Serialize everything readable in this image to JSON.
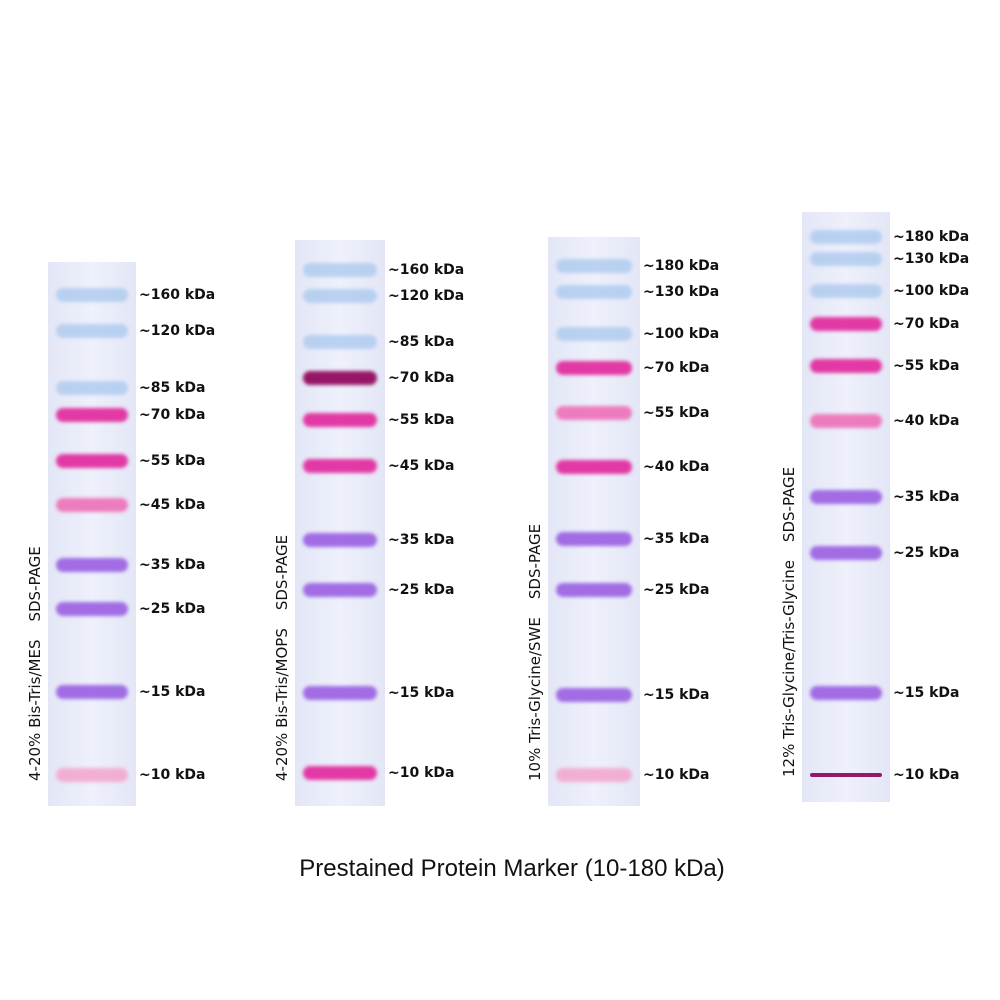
{
  "title": "Prestained Protein Marker (10-180 kDa)",
  "lanes": [
    {
      "gel": "4-20% Bis-Tris/MES",
      "method": "SDS-PAGE",
      "bands": [
        "~160 kDa",
        "~120 kDa",
        "~85 kDa",
        "~70 kDa",
        "~55 kDa",
        "~45 kDa",
        "~35 kDa",
        "~25 kDa",
        "~15 kDa",
        "~10 kDa"
      ]
    },
    {
      "gel": "4-20% Bis-Tris/MOPS",
      "method": "SDS-PAGE",
      "bands": [
        "~160 kDa",
        "~120 kDa",
        "~85 kDa",
        "~70 kDa",
        "~55 kDa",
        "~45 kDa",
        "~35 kDa",
        "~25 kDa",
        "~15 kDa",
        "~10 kDa"
      ]
    },
    {
      "gel": "10% Tris-Glycine/SWE",
      "method": "SDS-PAGE",
      "bands": [
        "~180 kDa",
        "~130 kDa",
        "~100 kDa",
        "~70 kDa",
        "~55 kDa",
        "~40 kDa",
        "~35 kDa",
        "~25 kDa",
        "~15 kDa",
        "~10 kDa"
      ]
    },
    {
      "gel": "12% Tris-Glycine/Tris-Glycine",
      "method": "SDS-PAGE",
      "bands": [
        "~180 kDa",
        "~130 kDa",
        "~100 kDa",
        "~70 kDa",
        "~55 kDa",
        "~40 kDa",
        "~35 kDa",
        "~25 kDa",
        "~15 kDa",
        "~10 kDa"
      ]
    }
  ]
}
